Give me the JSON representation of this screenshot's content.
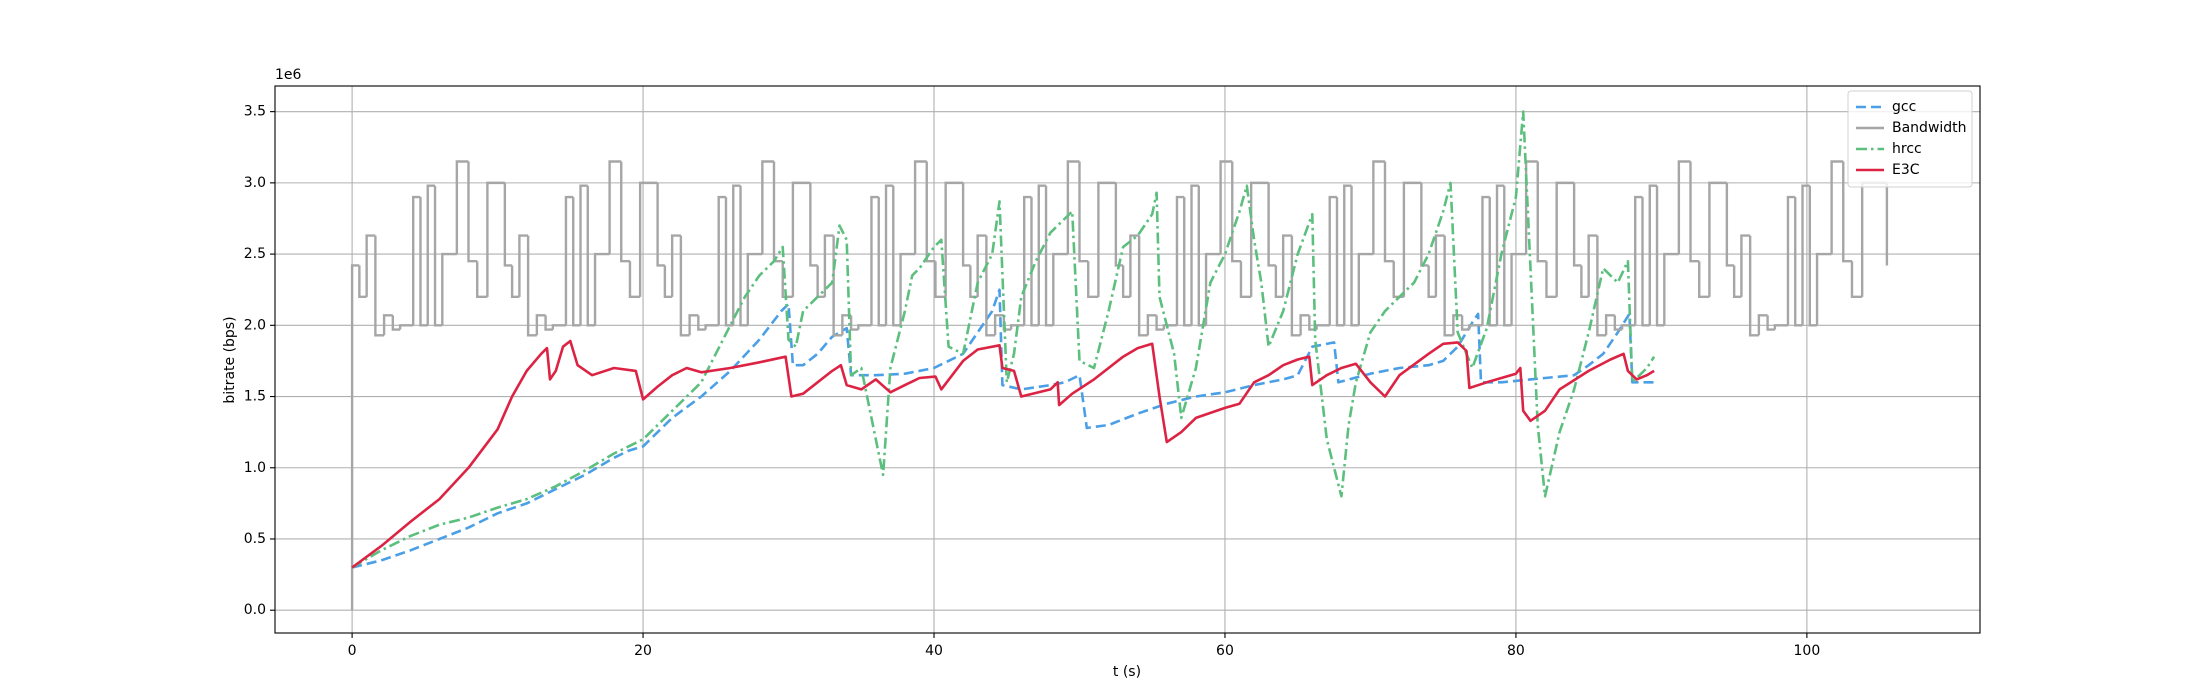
{
  "chart_data": {
    "type": "line",
    "x_label": "t (s)",
    "y_label": "bitrate (bps)",
    "y_offset_label": "1e6",
    "xlim": [
      -5.3,
      111.9
    ],
    "ylim": [
      -0.16,
      3.68
    ],
    "xticks": [
      0,
      20,
      40,
      60,
      80,
      100
    ],
    "yticks": [
      {
        "value": 0,
        "label": "0.0"
      },
      0.5,
      {
        "value": 1,
        "label": "1.0"
      },
      1.5,
      {
        "value": 2,
        "label": "2.0"
      },
      2.5,
      {
        "value": 3,
        "label": "3.0"
      },
      3.5
    ],
    "grid": true,
    "legend": "upper right",
    "series": [
      {
        "name": "gcc",
        "color": "#4b9fe6",
        "linestyle": "dashed",
        "x": [
          0,
          2,
          4,
          6,
          8,
          10,
          12,
          14,
          16,
          18,
          19,
          20,
          22,
          24,
          26,
          28,
          29.5,
          30,
          30.3,
          31,
          32,
          33,
          34,
          34.3,
          36,
          38,
          40,
          42,
          43,
          44,
          44.5,
          44.7,
          46,
          48,
          49,
          50,
          50.5,
          52,
          54,
          56,
          58,
          60,
          62,
          64,
          65,
          66,
          67.5,
          67.8,
          70,
          72,
          74,
          75,
          76,
          77,
          77.4,
          77.6,
          79,
          82,
          84,
          85,
          86,
          87,
          87.8,
          88,
          89.5
        ],
        "values": [
          0.3,
          0.35,
          0.42,
          0.5,
          0.58,
          0.68,
          0.75,
          0.85,
          0.95,
          1.07,
          1.12,
          1.15,
          1.35,
          1.5,
          1.68,
          1.9,
          2.1,
          2.15,
          1.72,
          1.72,
          1.8,
          1.92,
          1.98,
          1.65,
          1.65,
          1.66,
          1.7,
          1.8,
          1.95,
          2.1,
          2.25,
          1.58,
          1.55,
          1.58,
          1.6,
          1.65,
          1.28,
          1.3,
          1.38,
          1.45,
          1.5,
          1.53,
          1.58,
          1.62,
          1.65,
          1.85,
          1.88,
          1.6,
          1.66,
          1.7,
          1.72,
          1.75,
          1.85,
          2.02,
          2.08,
          1.6,
          1.6,
          1.63,
          1.65,
          1.72,
          1.8,
          1.95,
          2.08,
          1.6,
          1.6
        ]
      },
      {
        "name": "Bandwidth",
        "color": "#a6a6a6",
        "linestyle": "steps",
        "x": [
          0,
          0,
          0.5,
          1,
          1.6,
          2.2,
          2.8,
          3.3,
          4.2,
          4.7,
          5.2,
          5.7,
          6.2,
          7.2,
          8,
          8.6,
          9.3,
          10.5,
          11,
          11.5,
          12.1,
          12.7,
          13.3,
          13.8,
          14.7,
          15.2,
          15.7,
          16.2,
          16.7,
          17.7,
          18.5,
          19.1,
          19.8,
          21,
          21.5,
          22,
          22.6,
          23.2,
          23.8,
          24.3,
          25.2,
          25.7,
          26.2,
          26.7,
          27.2,
          28.2,
          29,
          29.6,
          30.3,
          31.5,
          32,
          32.5,
          33.1,
          33.7,
          34.3,
          34.8,
          35.7,
          36.2,
          36.7,
          37.2,
          37.7,
          38.7,
          39.5,
          40.1,
          40.8,
          42,
          42.5,
          43,
          43.6,
          44.2,
          44.8,
          45.3,
          46.2,
          46.7,
          47.2,
          47.7,
          48.2,
          49.2,
          50,
          50.6,
          51.3,
          52.5,
          53,
          53.5,
          54.1,
          54.7,
          55.3,
          55.8,
          56.7,
          57.2,
          57.7,
          58.2,
          58.7,
          59.7,
          60.5,
          61.1,
          61.8,
          63,
          63.5,
          64,
          64.6,
          65.2,
          65.8,
          66.3,
          67.2,
          67.7,
          68.2,
          68.7,
          69.2,
          70.2,
          71,
          71.6,
          72.3,
          73.5,
          74,
          74.5,
          75.1,
          75.7,
          76.3,
          76.8,
          77.7,
          78.2,
          78.7,
          79.2,
          79.7,
          80.7,
          81.5,
          82.1,
          82.8,
          84,
          84.5,
          85,
          85.6,
          86.2,
          86.8,
          87.3,
          88.2,
          88.7,
          89.2,
          89.7,
          90.2,
          91.2,
          92,
          92.6,
          93.3,
          94.5,
          95,
          95.5,
          96.1,
          96.7,
          97.3,
          97.8,
          98.7,
          99.2,
          99.7,
          100.2,
          100.7,
          101.7,
          102.5,
          103.1,
          103.8,
          105.5
        ],
        "values": [
          0,
          2.42,
          2.2,
          2.63,
          1.93,
          2.07,
          1.97,
          2.0,
          2.9,
          2.0,
          2.98,
          2.0,
          2.5,
          3.15,
          2.45,
          2.2,
          3.0,
          2.42,
          2.2,
          2.63,
          1.93,
          2.07,
          1.97,
          2.0,
          2.9,
          2.0,
          2.98,
          2.0,
          2.5,
          3.15,
          2.45,
          2.2,
          3.0,
          2.42,
          2.2,
          2.63,
          1.93,
          2.07,
          1.97,
          2.0,
          2.9,
          2.0,
          2.98,
          2.0,
          2.5,
          3.15,
          2.45,
          2.2,
          3.0,
          2.42,
          2.2,
          2.63,
          1.93,
          2.07,
          1.97,
          2.0,
          2.9,
          2.0,
          2.98,
          2.0,
          2.5,
          3.15,
          2.45,
          2.2,
          3.0,
          2.42,
          2.2,
          2.63,
          1.93,
          2.07,
          1.97,
          2.0,
          2.9,
          2.0,
          2.98,
          2.0,
          2.5,
          3.15,
          2.45,
          2.2,
          3.0,
          2.42,
          2.2,
          2.63,
          1.93,
          2.07,
          1.97,
          2.0,
          2.9,
          2.0,
          2.98,
          2.0,
          2.5,
          3.15,
          2.45,
          2.2,
          3.0,
          2.42,
          2.2,
          2.63,
          1.93,
          2.07,
          1.97,
          2.0,
          2.9,
          2.0,
          2.98,
          2.0,
          2.5,
          3.15,
          2.45,
          2.2,
          3.0,
          2.42,
          2.2,
          2.63,
          1.93,
          2.07,
          1.97,
          2.0,
          2.9,
          2.0,
          2.98,
          2.0,
          2.5,
          3.15,
          2.45,
          2.2,
          3.0,
          2.42,
          2.2,
          2.63,
          1.93,
          2.07,
          1.97,
          2.0,
          2.9,
          2.0,
          2.98,
          2.0,
          2.5,
          3.15,
          2.45,
          2.2,
          3.0,
          2.42,
          2.2,
          2.63,
          1.93,
          2.07,
          1.97,
          2.0,
          2.9,
          2.0,
          2.98,
          2.0,
          2.5,
          3.15,
          2.45,
          2.2,
          3.0,
          2.42
        ]
      },
      {
        "name": "hrcc",
        "color": "#5cbf7e",
        "linestyle": "dashdot",
        "x": [
          0,
          2,
          4,
          6,
          8,
          10,
          12,
          14,
          16,
          18,
          20,
          22,
          24,
          25,
          26,
          27,
          28,
          29,
          29.6,
          30,
          30.5,
          31,
          32,
          33,
          33.5,
          34,
          34.3,
          35,
          36,
          36.5,
          37,
          38,
          38.5,
          39,
          40,
          40.5,
          41,
          42,
          43,
          44,
          44.5,
          45,
          45.5,
          46,
          47,
          48,
          49,
          49.5,
          50,
          51,
          52,
          53,
          54,
          55,
          55.3,
          55.5,
          56.5,
          57,
          58,
          59,
          60,
          61,
          61.5,
          62,
          62.5,
          63,
          64,
          65,
          66,
          66.2,
          67,
          68,
          68.5,
          69,
          70,
          71,
          72,
          73,
          74,
          75,
          75.5,
          76,
          77,
          78,
          79,
          80,
          80.5,
          81,
          81.5,
          82,
          83,
          84,
          85,
          86,
          87,
          87.7,
          88,
          88.5,
          89,
          89.5
        ],
        "values": [
          0.3,
          0.42,
          0.52,
          0.6,
          0.65,
          0.72,
          0.78,
          0.87,
          0.98,
          1.1,
          1.2,
          1.4,
          1.6,
          1.8,
          2.0,
          2.2,
          2.35,
          2.45,
          2.55,
          1.9,
          1.85,
          2.1,
          2.2,
          2.3,
          2.7,
          2.6,
          1.65,
          1.7,
          1.2,
          0.95,
          1.7,
          2.1,
          2.35,
          2.4,
          2.55,
          2.6,
          1.85,
          1.8,
          2.3,
          2.5,
          2.87,
          1.6,
          1.8,
          2.2,
          2.45,
          2.65,
          2.75,
          2.8,
          1.75,
          1.7,
          2.1,
          2.55,
          2.63,
          2.78,
          2.93,
          2.2,
          1.8,
          1.35,
          1.7,
          2.3,
          2.5,
          2.8,
          2.98,
          2.6,
          2.3,
          1.85,
          2.1,
          2.5,
          2.78,
          1.9,
          1.2,
          0.8,
          1.3,
          1.6,
          1.95,
          2.1,
          2.2,
          2.3,
          2.5,
          2.8,
          3.0,
          1.95,
          1.7,
          1.98,
          2.5,
          2.9,
          3.5,
          2.4,
          1.3,
          0.8,
          1.25,
          1.55,
          1.95,
          2.4,
          2.3,
          2.45,
          1.6,
          1.65,
          1.7,
          1.78
        ]
      },
      {
        "name": "E3C",
        "color": "#dc2344",
        "linestyle": "solid",
        "x": [
          0,
          2,
          4,
          6,
          8,
          10,
          11,
          12,
          13,
          13.4,
          13.6,
          14,
          14.5,
          15,
          15.5,
          16.5,
          18,
          19.5,
          20,
          21,
          22,
          23,
          24,
          26,
          28,
          29.8,
          30.2,
          31,
          32,
          33,
          33.6,
          34,
          35,
          36,
          37,
          38,
          39,
          40.1,
          40.5,
          42,
          43,
          44.5,
          44.7,
          45.5,
          46,
          48,
          48.5,
          48.6,
          49.5,
          51,
          53,
          54,
          55,
          55.5,
          56,
          57,
          58,
          60,
          61,
          62,
          63,
          64,
          65,
          65.8,
          66,
          67,
          68,
          69,
          70,
          71,
          72,
          74,
          75,
          76,
          76.6,
          76.8,
          78,
          80,
          80.3,
          80.5,
          81,
          82,
          83,
          85,
          86.5,
          87.4,
          87.7,
          88.3,
          89,
          89.5
        ],
        "values": [
          0.3,
          0.45,
          0.62,
          0.78,
          1.0,
          1.27,
          1.5,
          1.68,
          1.8,
          1.84,
          1.62,
          1.68,
          1.85,
          1.89,
          1.72,
          1.65,
          1.7,
          1.68,
          1.48,
          1.57,
          1.65,
          1.7,
          1.67,
          1.7,
          1.74,
          1.78,
          1.5,
          1.52,
          1.6,
          1.68,
          1.72,
          1.58,
          1.55,
          1.62,
          1.53,
          1.58,
          1.63,
          1.64,
          1.55,
          1.75,
          1.83,
          1.86,
          1.7,
          1.68,
          1.5,
          1.55,
          1.6,
          1.44,
          1.52,
          1.62,
          1.78,
          1.84,
          1.87,
          1.5,
          1.18,
          1.25,
          1.35,
          1.42,
          1.45,
          1.6,
          1.65,
          1.72,
          1.76,
          1.78,
          1.58,
          1.65,
          1.7,
          1.73,
          1.6,
          1.5,
          1.65,
          1.8,
          1.87,
          1.88,
          1.82,
          1.56,
          1.6,
          1.66,
          1.7,
          1.4,
          1.33,
          1.4,
          1.55,
          1.68,
          1.76,
          1.8,
          1.68,
          1.62,
          1.65,
          1.68
        ]
      }
    ]
  }
}
